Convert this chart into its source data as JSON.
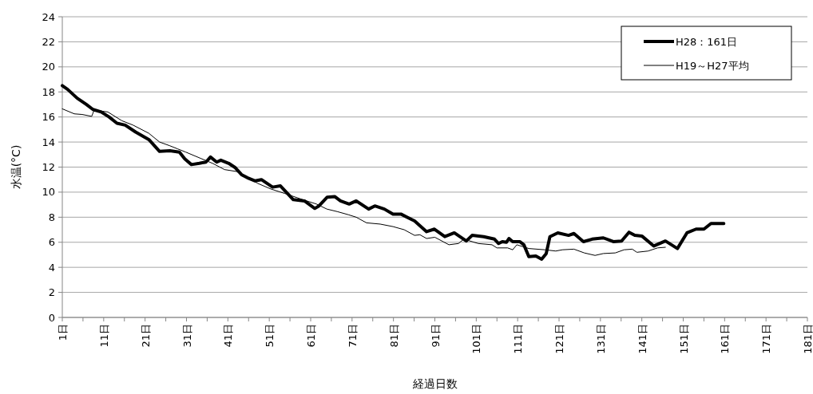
{
  "chart_data": {
    "type": "line",
    "xlabel": "経過日数",
    "ylabel": "水温(°C)",
    "xlim": [
      1,
      181
    ],
    "xticks": [
      {
        "value": 1,
        "label": "1日"
      },
      {
        "value": 6,
        "label": null
      },
      {
        "value": 11,
        "label": "11日"
      },
      {
        "value": 16,
        "label": null
      },
      {
        "value": 21,
        "label": "21日"
      },
      {
        "value": 26,
        "label": null
      },
      {
        "value": 31,
        "label": "31日"
      },
      {
        "value": 36,
        "label": null
      },
      {
        "value": 41,
        "label": "41日"
      },
      {
        "value": 46,
        "label": null
      },
      {
        "value": 51,
        "label": "51日"
      },
      {
        "value": 56,
        "label": null
      },
      {
        "value": 61,
        "label": "61日"
      },
      {
        "value": 66,
        "label": null
      },
      {
        "value": 71,
        "label": "71日"
      },
      {
        "value": 76,
        "label": null
      },
      {
        "value": 81,
        "label": "81日"
      },
      {
        "value": 86,
        "label": null
      },
      {
        "value": 91,
        "label": "91日"
      },
      {
        "value": 96,
        "label": null
      },
      {
        "value": 101,
        "label": "101日"
      },
      {
        "value": 106,
        "label": null
      },
      {
        "value": 111,
        "label": "111日"
      },
      {
        "value": 116,
        "label": null
      },
      {
        "value": 121,
        "label": "121日"
      },
      {
        "value": 126,
        "label": null
      },
      {
        "value": 131,
        "label": "131日"
      },
      {
        "value": 136,
        "label": null
      },
      {
        "value": 141,
        "label": "141日"
      },
      {
        "value": 146,
        "label": null
      },
      {
        "value": 151,
        "label": "151日"
      },
      {
        "value": 156,
        "label": null
      },
      {
        "value": 161,
        "label": "161日"
      },
      {
        "value": 166,
        "label": null
      },
      {
        "value": 171,
        "label": "171日"
      },
      {
        "value": 176,
        "label": null
      },
      {
        "value": 181,
        "label": "181日"
      }
    ],
    "ylim": [
      0,
      24
    ],
    "yticks": [
      0,
      2,
      4,
      6,
      8,
      10,
      12,
      14,
      16,
      18,
      20,
      22,
      24
    ],
    "grid": "y",
    "legend": "top right",
    "marker": "none",
    "line_style": "solid",
    "series": [
      {
        "name": "H28：161日",
        "color": "#000000",
        "x": [
          1,
          2.3,
          4.6,
          6.8,
          8.4,
          10.4,
          12.3,
          14.2,
          16.2,
          18.7,
          21.9,
          24.5,
          27,
          29.3,
          30.6,
          32.2,
          34.1,
          35.7,
          36.8,
          38.3,
          39.3,
          41.2,
          42.8,
          44.3,
          45.7,
          47.6,
          49.1,
          51.8,
          53.7,
          56.8,
          59.5,
          62,
          63,
          65,
          66.8,
          68.2,
          70.3,
          72,
          75,
          76.5,
          78.8,
          80.9,
          82.8,
          86.1,
          89,
          90.9,
          93.4,
          95.7,
          98.6,
          100,
          102.8,
          105.4,
          106.4,
          107.3,
          108.3,
          108.9,
          109.8,
          111.5,
          112.5,
          113.7,
          115.4,
          116.8,
          117.9,
          118.8,
          120.7,
          123.3,
          124.6,
          126.9,
          129,
          131.7,
          134.1,
          136.1,
          137.9,
          139.3,
          141,
          143.9,
          146.7,
          149.6,
          151.9,
          154.1,
          156,
          157.7,
          160.8
        ],
        "values": [
          18.5,
          18.2,
          17.5,
          17.0,
          16.6,
          16.4,
          16.0,
          15.5,
          15.35,
          14.8,
          14.2,
          13.25,
          13.3,
          13.2,
          12.65,
          12.2,
          12.3,
          12.4,
          12.8,
          12.4,
          12.55,
          12.3,
          11.95,
          11.4,
          11.15,
          10.9,
          11.0,
          10.4,
          10.5,
          9.4,
          9.3,
          8.7,
          8.9,
          9.6,
          9.65,
          9.3,
          9.05,
          9.3,
          8.65,
          8.9,
          8.65,
          8.25,
          8.25,
          7.7,
          6.85,
          7.05,
          6.45,
          6.75,
          6.1,
          6.55,
          6.45,
          6.25,
          5.9,
          6.05,
          6.0,
          6.3,
          6.05,
          6.05,
          5.8,
          4.85,
          4.9,
          4.65,
          5.1,
          6.45,
          6.75,
          6.55,
          6.7,
          6.05,
          6.25,
          6.35,
          6.05,
          6.1,
          6.8,
          6.55,
          6.5,
          5.7,
          6.1,
          5.5,
          6.75,
          7.05,
          7.05,
          7.5,
          7.5
        ]
      },
      {
        "name": "H19～H27平均",
        "color": "#000000",
        "x": [
          1,
          3.9,
          5.8,
          8.1,
          8.7,
          12,
          15.4,
          18.1,
          21.9,
          24.5,
          27,
          28.9,
          30.8,
          34.4,
          37.3,
          40.2,
          43.1,
          45.7,
          48.2,
          51.4,
          54.7,
          59.1,
          62.4,
          64.9,
          67.4,
          70.1,
          72,
          74.5,
          77.8,
          80.9,
          83.6,
          86.1,
          87.4,
          89,
          91,
          94.4,
          96.7,
          98,
          101.5,
          104.8,
          106,
          108.6,
          109.8,
          110.8,
          113.7,
          117.6,
          120.2,
          121.8,
          124.6,
          127.1,
          129.7,
          131.7,
          134.6,
          136.7,
          138.7,
          139.8,
          142.5,
          144.8,
          146.7
        ],
        "values": [
          16.65,
          16.25,
          16.2,
          16.05,
          16.55,
          16.4,
          15.7,
          15.35,
          14.7,
          14.0,
          13.7,
          13.45,
          13.2,
          12.7,
          12.3,
          11.8,
          11.65,
          11.2,
          10.7,
          10.25,
          9.9,
          9.4,
          9.05,
          8.65,
          8.45,
          8.2,
          8.0,
          7.55,
          7.45,
          7.25,
          7.0,
          6.55,
          6.6,
          6.3,
          6.4,
          5.8,
          5.9,
          6.25,
          5.9,
          5.8,
          5.55,
          5.55,
          5.4,
          5.8,
          5.5,
          5.4,
          5.3,
          5.4,
          5.45,
          5.15,
          4.95,
          5.1,
          5.15,
          5.4,
          5.45,
          5.2,
          5.3,
          5.55,
          5.6
        ]
      }
    ]
  }
}
